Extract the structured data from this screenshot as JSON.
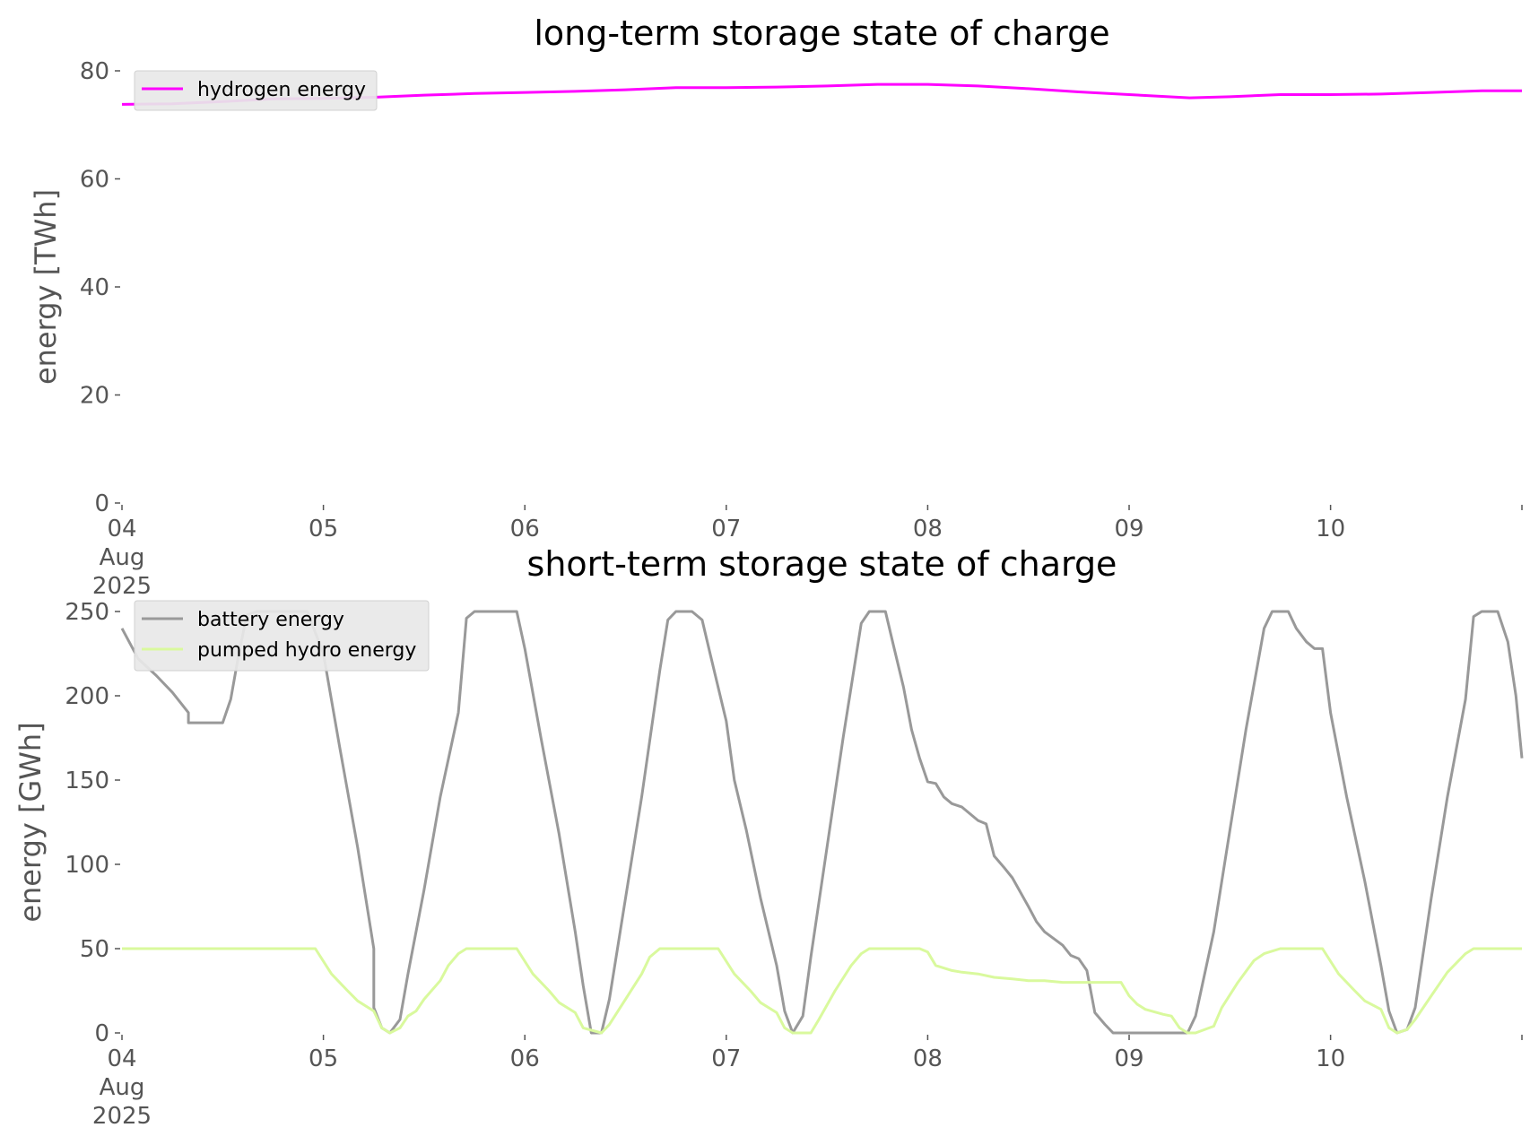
{
  "colors": {
    "hydrogen": "#ff00ff",
    "battery": "#999999",
    "pumped_hydro": "#d9f99d",
    "axis_text": "#555555",
    "legend_bg": "#e8e8e8"
  },
  "chart_data": [
    {
      "type": "line",
      "title": "long-term storage state of charge",
      "xlabel": "",
      "ylabel": "energy [TWh]",
      "xlim": [
        0,
        6.95
      ],
      "ylim": [
        0,
        80
      ],
      "grid": false,
      "legend_position": "top-left",
      "x_ticks": [
        {
          "x": 0,
          "lines": [
            "04",
            "Aug",
            "2025"
          ]
        },
        {
          "x": 1,
          "lines": [
            "05"
          ]
        },
        {
          "x": 2,
          "lines": [
            "06"
          ]
        },
        {
          "x": 3,
          "lines": [
            "07"
          ]
        },
        {
          "x": 4,
          "lines": [
            "08"
          ]
        },
        {
          "x": 5,
          "lines": [
            "09"
          ]
        },
        {
          "x": 6,
          "lines": [
            "10"
          ]
        }
      ],
      "y_ticks": [
        0,
        20,
        40,
        60,
        80
      ],
      "series": [
        {
          "name": "hydrogen energy",
          "color": "#ff00ff",
          "points": [
            [
              0,
              73.8
            ],
            [
              0.25,
              73.9
            ],
            [
              0.5,
              74.3
            ],
            [
              0.75,
              74.8
            ],
            [
              1,
              74.9
            ],
            [
              1.25,
              75.1
            ],
            [
              1.5,
              75.5
            ],
            [
              1.75,
              75.8
            ],
            [
              2,
              76.0
            ],
            [
              2.25,
              76.2
            ],
            [
              2.5,
              76.5
            ],
            [
              2.75,
              76.9
            ],
            [
              3,
              76.9
            ],
            [
              3.25,
              77.0
            ],
            [
              3.5,
              77.2
            ],
            [
              3.75,
              77.5
            ],
            [
              4,
              77.5
            ],
            [
              4.25,
              77.2
            ],
            [
              4.5,
              76.7
            ],
            [
              4.75,
              76.1
            ],
            [
              5,
              75.6
            ],
            [
              5.3,
              75.0
            ],
            [
              5.5,
              75.2
            ],
            [
              5.75,
              75.6
            ],
            [
              6,
              75.6
            ],
            [
              6.25,
              75.7
            ],
            [
              6.5,
              76.0
            ],
            [
              6.75,
              76.3
            ],
            [
              6.95,
              76.3
            ]
          ]
        }
      ]
    },
    {
      "type": "line",
      "title": "short-term storage state of charge",
      "xlabel": "",
      "ylabel": "energy [GWh]",
      "xlim": [
        0,
        6.95
      ],
      "ylim": [
        0,
        250
      ],
      "grid": false,
      "legend_position": "top-left",
      "x_ticks": [
        {
          "x": 0,
          "lines": [
            "04",
            "Aug",
            "2025"
          ]
        },
        {
          "x": 1,
          "lines": [
            "05"
          ]
        },
        {
          "x": 2,
          "lines": [
            "06"
          ]
        },
        {
          "x": 3,
          "lines": [
            "07"
          ]
        },
        {
          "x": 4,
          "lines": [
            "08"
          ]
        },
        {
          "x": 5,
          "lines": [
            "09"
          ]
        },
        {
          "x": 6,
          "lines": [
            "10"
          ]
        }
      ],
      "y_ticks": [
        0,
        50,
        100,
        150,
        200,
        250
      ],
      "series": [
        {
          "name": "battery energy",
          "color": "#999999",
          "points": [
            [
              0,
              240
            ],
            [
              0.08,
              222
            ],
            [
              0.17,
              212
            ],
            [
              0.25,
              202
            ],
            [
              0.33,
              190
            ],
            [
              0.33,
              190
            ],
            [
              0.33,
              190
            ],
            [
              0.33,
              184
            ],
            [
              0.5,
              184
            ],
            [
              0.54,
              198
            ],
            [
              0.58,
              225
            ],
            [
              0.62,
              248
            ],
            [
              0.67,
              250
            ],
            [
              0.92,
              250
            ],
            [
              1.0,
              225
            ],
            [
              1.08,
              170
            ],
            [
              1.17,
              110
            ],
            [
              1.25,
              50
            ],
            [
              1.25,
              50
            ],
            [
              1.25,
              50
            ],
            [
              1.25,
              50
            ],
            [
              1.25,
              15
            ],
            [
              1.29,
              3
            ],
            [
              1.33,
              0
            ],
            [
              1.38,
              8
            ],
            [
              1.42,
              35
            ],
            [
              1.5,
              85
            ],
            [
              1.58,
              140
            ],
            [
              1.67,
              190
            ],
            [
              1.71,
              246
            ],
            [
              1.75,
              250
            ],
            [
              1.96,
              250
            ],
            [
              2.0,
              228
            ],
            [
              2.08,
              175
            ],
            [
              2.17,
              118
            ],
            [
              2.25,
              60
            ],
            [
              2.29,
              28
            ],
            [
              2.33,
              0
            ],
            [
              2.38,
              0
            ],
            [
              2.42,
              20
            ],
            [
              2.5,
              80
            ],
            [
              2.58,
              140
            ],
            [
              2.67,
              215
            ],
            [
              2.71,
              245
            ],
            [
              2.75,
              250
            ],
            [
              2.83,
              250
            ],
            [
              2.88,
              245
            ],
            [
              2.92,
              225
            ],
            [
              2.96,
              205
            ],
            [
              3.0,
              185
            ],
            [
              3.04,
              150
            ],
            [
              3.1,
              120
            ],
            [
              3.17,
              80
            ],
            [
              3.25,
              40
            ],
            [
              3.29,
              13
            ],
            [
              3.33,
              0
            ],
            [
              3.38,
              10
            ],
            [
              3.42,
              45
            ],
            [
              3.5,
              110
            ],
            [
              3.58,
              175
            ],
            [
              3.67,
              243
            ],
            [
              3.71,
              250
            ],
            [
              3.79,
              250
            ],
            [
              3.83,
              230
            ],
            [
              3.88,
              205
            ],
            [
              3.92,
              180
            ],
            [
              3.96,
              163
            ],
            [
              4.0,
              149
            ],
            [
              4.04,
              148
            ],
            [
              4.08,
              140
            ],
            [
              4.12,
              136
            ],
            [
              4.17,
              134
            ],
            [
              4.21,
              130
            ],
            [
              4.25,
              126
            ],
            [
              4.29,
              124
            ],
            [
              4.33,
              105
            ],
            [
              4.38,
              98
            ],
            [
              4.42,
              92
            ],
            [
              4.5,
              75
            ],
            [
              4.54,
              66
            ],
            [
              4.58,
              60
            ],
            [
              4.67,
              52
            ],
            [
              4.71,
              46
            ],
            [
              4.75,
              44
            ],
            [
              4.79,
              37
            ],
            [
              4.83,
              12
            ],
            [
              4.88,
              5
            ],
            [
              4.92,
              0
            ],
            [
              5.25,
              0
            ],
            [
              5.29,
              0
            ],
            [
              5.33,
              10
            ],
            [
              5.42,
              60
            ],
            [
              5.5,
              120
            ],
            [
              5.58,
              180
            ],
            [
              5.67,
              240
            ],
            [
              5.71,
              250
            ],
            [
              5.79,
              250
            ],
            [
              5.83,
              240
            ],
            [
              5.88,
              232
            ],
            [
              5.92,
              228
            ],
            [
              5.96,
              228
            ],
            [
              6.0,
              190
            ],
            [
              6.08,
              140
            ],
            [
              6.17,
              90
            ],
            [
              6.25,
              40
            ],
            [
              6.29,
              13
            ],
            [
              6.33,
              0
            ],
            [
              6.38,
              2
            ],
            [
              6.42,
              15
            ],
            [
              6.5,
              80
            ],
            [
              6.58,
              140
            ],
            [
              6.67,
              198
            ],
            [
              6.71,
              247
            ],
            [
              6.75,
              250
            ],
            [
              6.83,
              250
            ],
            [
              6.88,
              232
            ],
            [
              6.92,
              200
            ],
            [
              6.95,
              163
            ]
          ]
        },
        {
          "name": "pumped hydro energy",
          "color": "#d9f99d",
          "points": [
            [
              0,
              50
            ],
            [
              0.96,
              50
            ],
            [
              1.04,
              35
            ],
            [
              1.12,
              25
            ],
            [
              1.17,
              19
            ],
            [
              1.25,
              13
            ],
            [
              1.29,
              3
            ],
            [
              1.33,
              0
            ],
            [
              1.38,
              3
            ],
            [
              1.42,
              10
            ],
            [
              1.46,
              13
            ],
            [
              1.5,
              20
            ],
            [
              1.58,
              31
            ],
            [
              1.62,
              40
            ],
            [
              1.67,
              47
            ],
            [
              1.71,
              50
            ],
            [
              1.96,
              50
            ],
            [
              2.04,
              35
            ],
            [
              2.12,
              25
            ],
            [
              2.17,
              18
            ],
            [
              2.25,
              12
            ],
            [
              2.29,
              3
            ],
            [
              2.38,
              0
            ],
            [
              2.42,
              5
            ],
            [
              2.5,
              20
            ],
            [
              2.58,
              35
            ],
            [
              2.62,
              45
            ],
            [
              2.67,
              50
            ],
            [
              2.96,
              50
            ],
            [
              3.04,
              35
            ],
            [
              3.12,
              25
            ],
            [
              3.17,
              18
            ],
            [
              3.25,
              12
            ],
            [
              3.29,
              3
            ],
            [
              3.33,
              0
            ],
            [
              3.42,
              0
            ],
            [
              3.46,
              8
            ],
            [
              3.54,
              25
            ],
            [
              3.62,
              40
            ],
            [
              3.67,
              47
            ],
            [
              3.71,
              50
            ],
            [
              3.96,
              50
            ],
            [
              4.0,
              48
            ],
            [
              4.04,
              40
            ],
            [
              4.12,
              37
            ],
            [
              4.17,
              36
            ],
            [
              4.25,
              35
            ],
            [
              4.33,
              33
            ],
            [
              4.42,
              32
            ],
            [
              4.5,
              31
            ],
            [
              4.58,
              31
            ],
            [
              4.67,
              30
            ],
            [
              4.96,
              30
            ],
            [
              5.0,
              22
            ],
            [
              5.04,
              17
            ],
            [
              5.08,
              14
            ],
            [
              5.17,
              11
            ],
            [
              5.21,
              10
            ],
            [
              5.25,
              3
            ],
            [
              5.29,
              0
            ],
            [
              5.33,
              0
            ],
            [
              5.42,
              4
            ],
            [
              5.46,
              15
            ],
            [
              5.54,
              30
            ],
            [
              5.62,
              43
            ],
            [
              5.67,
              47
            ],
            [
              5.75,
              50
            ],
            [
              5.96,
              50
            ],
            [
              6.04,
              35
            ],
            [
              6.12,
              25
            ],
            [
              6.17,
              19
            ],
            [
              6.25,
              14
            ],
            [
              6.29,
              3
            ],
            [
              6.33,
              0
            ],
            [
              6.38,
              2
            ],
            [
              6.42,
              8
            ],
            [
              6.5,
              22
            ],
            [
              6.58,
              36
            ],
            [
              6.67,
              47
            ],
            [
              6.71,
              50
            ],
            [
              6.95,
              50
            ]
          ]
        }
      ]
    }
  ]
}
